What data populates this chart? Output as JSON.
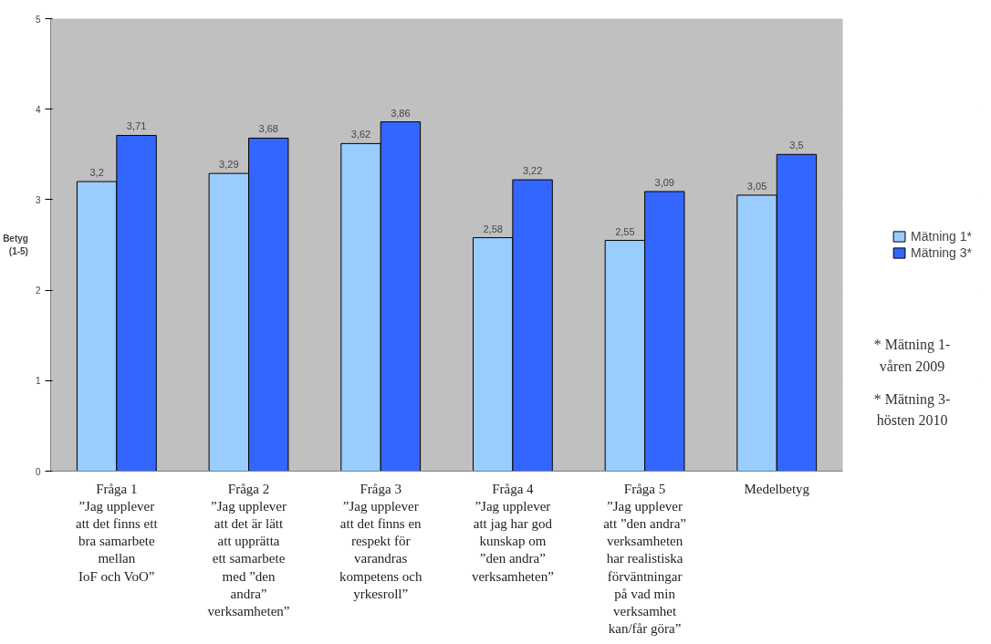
{
  "chart_data": {
    "type": "bar",
    "ylabel": "Betyg\n(1-5)",
    "categories": [
      "Fråga 1\n”Jag upplever\natt det finns ett\nbra samarbete\nmellan\nIoF och VoO”",
      "Fråga 2\n”Jag upplever\natt det är lätt\natt upprätta\nett samarbete\nmed ”den\nandra”\nverksamheten”",
      "Fråga 3\n”Jag upplever\natt det finns en\nrespekt för\nvarandras\nkompetens och\nyrkesroll”",
      "Fråga 4\n”Jag upplever\natt jag har god\nkunskap om\n”den andra”\nverksamheten”",
      "Fråga 5\n”Jag upplever\natt ”den andra”\nverksamheten\nhar realistiska\nförväntningar\npå vad min\nverksamhet\nkan/får göra”",
      "Medelbetyg"
    ],
    "series": [
      {
        "name": "Mätning 1*",
        "color": "#99ccff",
        "values": [
          3.2,
          3.29,
          3.62,
          2.58,
          2.55,
          3.05
        ],
        "value_labels": [
          "3,2",
          "3,29",
          "3,62",
          "2,58",
          "2,55",
          "3,05"
        ]
      },
      {
        "name": "Mätning 3*",
        "color": "#3366ff",
        "values": [
          3.71,
          3.68,
          3.86,
          3.22,
          3.09,
          3.5
        ],
        "value_labels": [
          "3,71",
          "3,68",
          "3,86",
          "3,22",
          "3,09",
          "3,5"
        ]
      }
    ],
    "ylim": [
      0,
      5
    ],
    "yticks": [
      0,
      1,
      2,
      3,
      4,
      5
    ],
    "grid": "y",
    "legend": "right",
    "annotations": [
      "* Mätning 1-\nvåren 2009",
      "* Mätning 3-\nhösten 2010"
    ]
  }
}
